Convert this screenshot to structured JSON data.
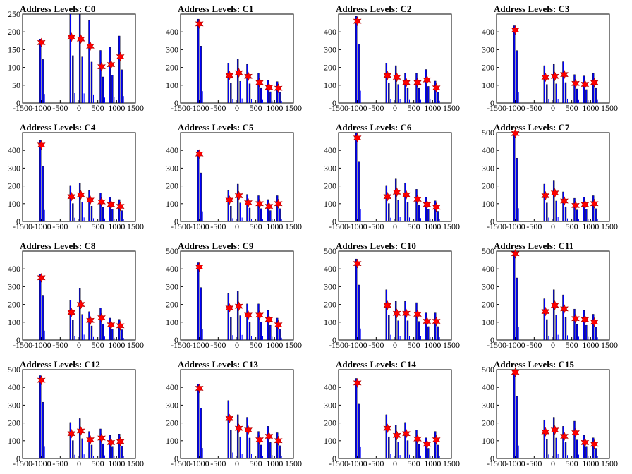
{
  "chart_data": [
    {
      "type": "bar",
      "title": "Address Levels: C0",
      "xlim": [
        -1500,
        1500
      ],
      "ylim": [
        0,
        250
      ],
      "yticks": [
        0,
        50,
        100,
        150,
        200,
        250
      ],
      "xticks": [
        -1500,
        -1000,
        -500,
        0,
        500,
        1000,
        1500
      ],
      "x": [
        -1000,
        -200,
        50,
        300,
        600,
        850,
        1100
      ],
      "values": [
        170,
        185,
        180,
        160,
        102,
        108,
        130
      ]
    },
    {
      "type": "bar",
      "title": "Address Levels: C1",
      "xlim": [
        -1500,
        1500
      ],
      "ylim": [
        0,
        500
      ],
      "yticks": [
        0,
        100,
        200,
        300,
        400
      ],
      "xticks": [
        -1500,
        -1000,
        -500,
        0,
        500,
        1000,
        1500
      ],
      "x": [
        -1000,
        -200,
        50,
        300,
        600,
        850,
        1100
      ],
      "values": [
        445,
        155,
        170,
        150,
        115,
        88,
        83
      ]
    },
    {
      "type": "bar",
      "title": "Address Levels: C2",
      "xlim": [
        -1500,
        1500
      ],
      "ylim": [
        0,
        500
      ],
      "yticks": [
        0,
        100,
        200,
        300,
        400
      ],
      "xticks": [
        -1500,
        -1000,
        -500,
        0,
        500,
        1000,
        1500
      ],
      "x": [
        -1000,
        -200,
        50,
        300,
        600,
        850,
        1100
      ],
      "values": [
        460,
        155,
        145,
        115,
        115,
        130,
        85
      ]
    },
    {
      "type": "bar",
      "title": "Address Levels: C3",
      "xlim": [
        -1500,
        1500
      ],
      "ylim": [
        0,
        500
      ],
      "yticks": [
        0,
        100,
        200,
        300,
        400
      ],
      "xticks": [
        -1500,
        -1000,
        -500,
        0,
        500,
        1000,
        1500
      ],
      "x": [
        -1000,
        -200,
        50,
        300,
        600,
        850,
        1100
      ],
      "values": [
        410,
        145,
        150,
        160,
        110,
        105,
        115
      ]
    },
    {
      "type": "bar",
      "title": "Address Levels: C4",
      "xlim": [
        -1500,
        1500
      ],
      "ylim": [
        0,
        500
      ],
      "yticks": [
        0,
        100,
        200,
        300,
        400
      ],
      "xticks": [
        -1500,
        -1000,
        -500,
        0,
        500,
        1000,
        1500
      ],
      "x": [
        -1000,
        -200,
        50,
        300,
        600,
        850,
        1100
      ],
      "values": [
        430,
        140,
        150,
        120,
        110,
        95,
        85
      ]
    },
    {
      "type": "bar",
      "title": "Address Levels: C5",
      "xlim": [
        -1500,
        1500
      ],
      "ylim": [
        0,
        500
      ],
      "yticks": [
        0,
        100,
        200,
        300,
        400
      ],
      "xticks": [
        -1500,
        -1000,
        -500,
        0,
        500,
        1000,
        1500
      ],
      "x": [
        -1000,
        -200,
        50,
        300,
        600,
        850,
        1100
      ],
      "values": [
        380,
        120,
        145,
        105,
        100,
        85,
        100
      ]
    },
    {
      "type": "bar",
      "title": "Address Levels: C6",
      "xlim": [
        -1500,
        1500
      ],
      "ylim": [
        0,
        500
      ],
      "yticks": [
        0,
        100,
        200,
        300,
        400
      ],
      "xticks": [
        -1500,
        -1000,
        -500,
        0,
        500,
        1000,
        1500
      ],
      "x": [
        -1000,
        -200,
        50,
        300,
        600,
        850,
        1100
      ],
      "values": [
        470,
        140,
        165,
        150,
        125,
        95,
        80
      ]
    },
    {
      "type": "bar",
      "title": "Address Levels: C7",
      "xlim": [
        -1500,
        1500
      ],
      "ylim": [
        0,
        500
      ],
      "yticks": [
        0,
        100,
        200,
        300,
        400,
        500
      ],
      "xticks": [
        -1500,
        -1000,
        -500,
        0,
        500,
        1000,
        1500
      ],
      "x": [
        -1000,
        -200,
        50,
        300,
        600,
        850,
        1100
      ],
      "values": [
        495,
        145,
        160,
        115,
        90,
        95,
        100
      ]
    },
    {
      "type": "bar",
      "title": "Address Levels: C8",
      "xlim": [
        -1500,
        1500
      ],
      "ylim": [
        0,
        500
      ],
      "yticks": [
        0,
        100,
        200,
        300,
        400
      ],
      "xticks": [
        -1500,
        -1000,
        -500,
        0,
        500,
        1000,
        1500
      ],
      "x": [
        -1000,
        -200,
        50,
        300,
        600,
        850,
        1100
      ],
      "values": [
        350,
        155,
        200,
        110,
        125,
        85,
        80
      ]
    },
    {
      "type": "bar",
      "title": "Address Levels: C9",
      "xlim": [
        -1500,
        1500
      ],
      "ylim": [
        0,
        500
      ],
      "yticks": [
        0,
        100,
        200,
        300,
        400,
        500
      ],
      "xticks": [
        -1500,
        -1000,
        -500,
        0,
        500,
        1000,
        1500
      ],
      "x": [
        -1000,
        -200,
        50,
        300,
        600,
        850,
        1100
      ],
      "values": [
        410,
        180,
        190,
        140,
        140,
        115,
        85
      ]
    },
    {
      "type": "bar",
      "title": "Address Levels: C10",
      "xlim": [
        -1500,
        1500
      ],
      "ylim": [
        0,
        500
      ],
      "yticks": [
        0,
        100,
        200,
        300,
        400,
        500
      ],
      "xticks": [
        -1500,
        -1000,
        -500,
        0,
        500,
        1000,
        1500
      ],
      "x": [
        -1000,
        -200,
        50,
        300,
        600,
        850,
        1100
      ],
      "values": [
        430,
        195,
        150,
        150,
        145,
        105,
        105
      ]
    },
    {
      "type": "bar",
      "title": "Address Levels: C11",
      "xlim": [
        -1500,
        1500
      ],
      "ylim": [
        0,
        500
      ],
      "yticks": [
        0,
        100,
        200,
        300,
        400,
        500
      ],
      "xticks": [
        -1500,
        -1000,
        -500,
        0,
        500,
        1000,
        1500
      ],
      "x": [
        -1000,
        -200,
        50,
        300,
        600,
        850,
        1100
      ],
      "values": [
        485,
        160,
        195,
        175,
        120,
        115,
        100
      ]
    },
    {
      "type": "bar",
      "title": "Address Levels: C12",
      "xlim": [
        -1500,
        1500
      ],
      "ylim": [
        0,
        500
      ],
      "yticks": [
        0,
        100,
        200,
        300,
        400,
        500
      ],
      "xticks": [
        -1500,
        -1000,
        -500,
        0,
        500,
        1000,
        1500
      ],
      "x": [
        -1000,
        -200,
        50,
        300,
        600,
        850,
        1100
      ],
      "values": [
        440,
        140,
        155,
        105,
        115,
        90,
        95
      ]
    },
    {
      "type": "bar",
      "title": "Address Levels: C13",
      "xlim": [
        -1500,
        1500
      ],
      "ylim": [
        0,
        500
      ],
      "yticks": [
        0,
        100,
        200,
        300,
        400
      ],
      "xticks": [
        -1500,
        -1000,
        -500,
        0,
        500,
        1000,
        1500
      ],
      "x": [
        -1000,
        -200,
        50,
        300,
        600,
        850,
        1100
      ],
      "values": [
        395,
        225,
        170,
        160,
        105,
        125,
        100
      ]
    },
    {
      "type": "bar",
      "title": "Address Levels: C14",
      "xlim": [
        -1500,
        1500
      ],
      "ylim": [
        0,
        500
      ],
      "yticks": [
        0,
        100,
        200,
        300,
        400
      ],
      "xticks": [
        -1500,
        -1000,
        -500,
        0,
        500,
        1000,
        1500
      ],
      "x": [
        -1000,
        -200,
        50,
        300,
        600,
        850,
        1100
      ],
      "values": [
        425,
        170,
        130,
        140,
        110,
        80,
        105
      ]
    },
    {
      "type": "bar",
      "title": "Address Levels: C15",
      "xlim": [
        -1500,
        1500
      ],
      "ylim": [
        0,
        500
      ],
      "yticks": [
        0,
        100,
        200,
        300,
        400,
        500
      ],
      "xticks": [
        -1500,
        -1000,
        -500,
        0,
        500,
        1000,
        1500
      ],
      "x": [
        -1000,
        -200,
        50,
        300,
        600,
        850,
        1100
      ],
      "values": [
        485,
        150,
        160,
        125,
        145,
        90,
        80
      ]
    }
  ],
  "colors": {
    "bar": "#0000ff",
    "bar_outline": "#000000",
    "marker": "#ff0000",
    "axis": "#000000"
  }
}
